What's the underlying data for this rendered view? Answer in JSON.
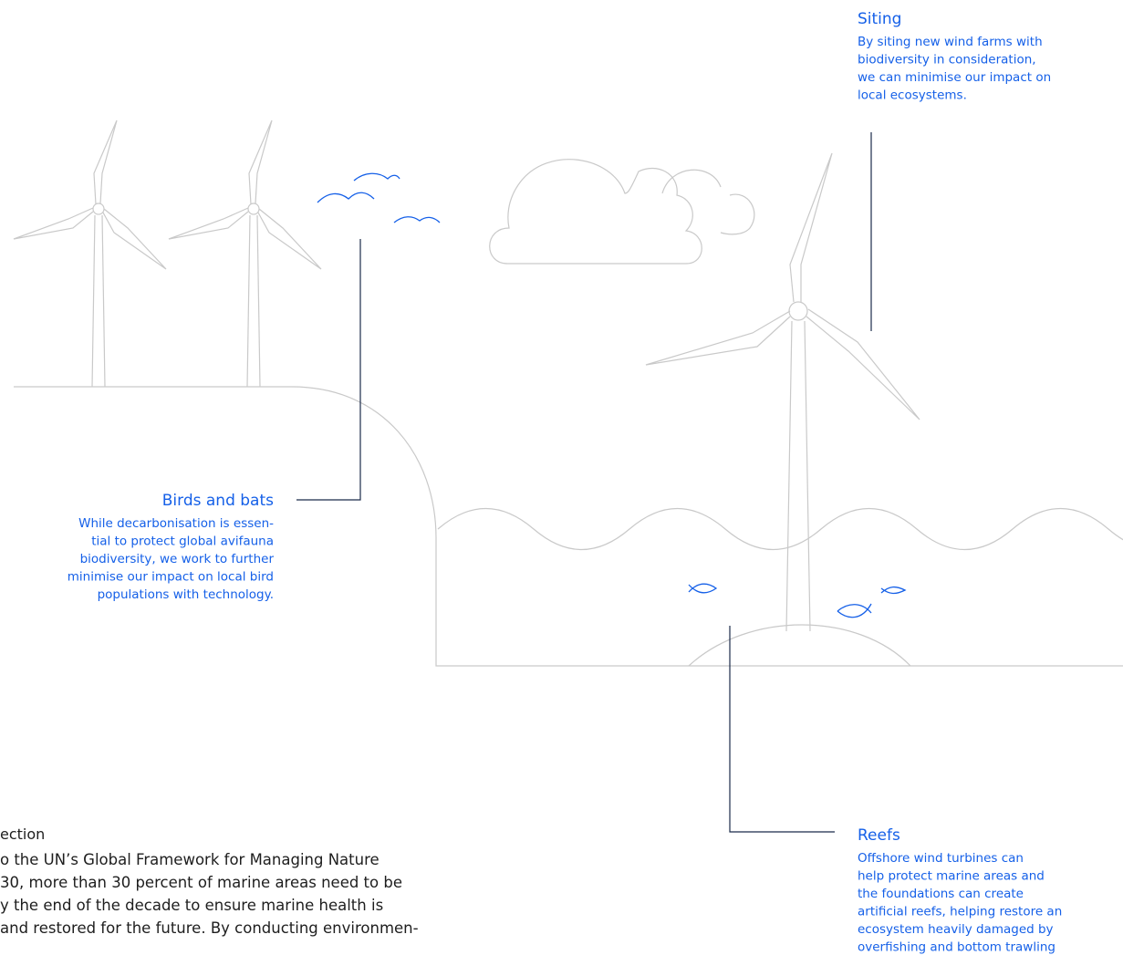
{
  "callouts": [
    {
      "title": "Siting",
      "lines": [
        "By siting new wind farms with",
        "biodiversity in consideration,",
        "we can minimise our impact on",
        "local ecosystems."
      ]
    },
    {
      "title": "Birds and bats",
      "lines": [
        "While decarbonisation is essen-",
        "tial to protect global avifauna",
        "biodiversity, we work to further",
        "minimise our impact on local bird",
        "populations with technology."
      ]
    },
    {
      "title": "Reefs",
      "lines": [
        "Offshore wind turbines can",
        "help protect marine areas and",
        "the foundations can create",
        "artificial reefs, helping restore an",
        "ecosystem heavily damaged by",
        "overfishing and bottom trawling"
      ]
    }
  ],
  "section": {
    "title": "ection",
    "lines": [
      "o the UN’s Global Framework for Managing Nature",
      "30, more than 30 percent of marine areas need to be",
      "y the end of the decade to ensure marine health is",
      "and restored for the future. By conducting environmen-"
    ]
  }
}
